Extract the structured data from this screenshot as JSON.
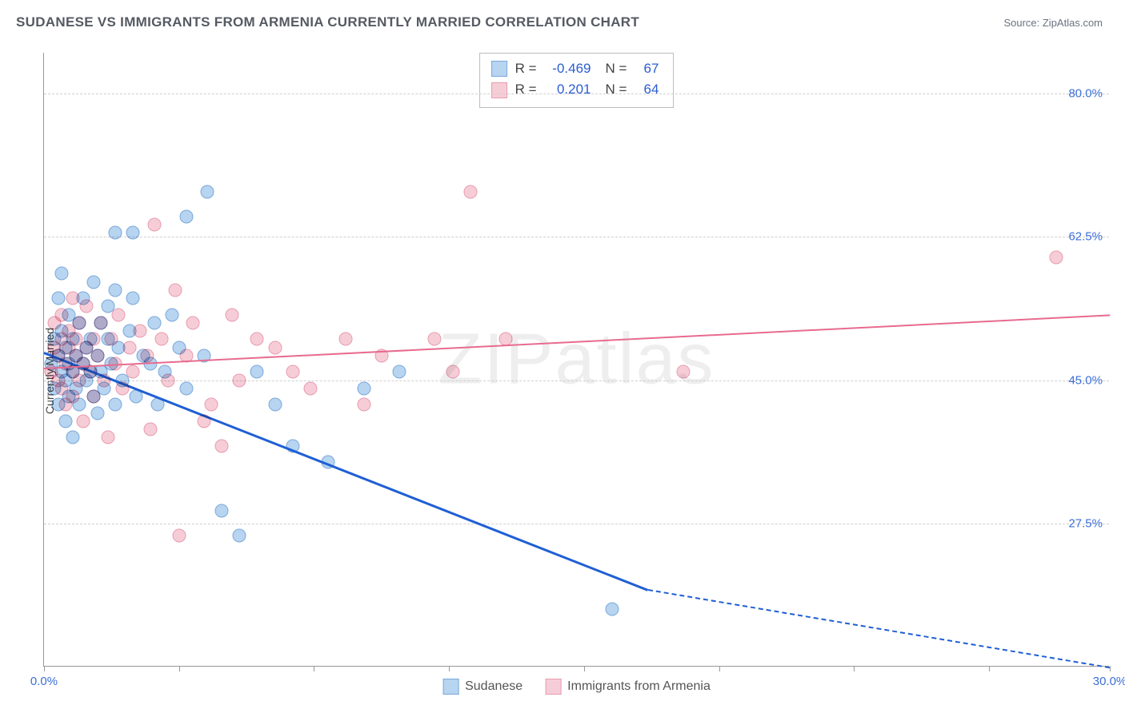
{
  "title": "SUDANESE VS IMMIGRANTS FROM ARMENIA CURRENTLY MARRIED CORRELATION CHART",
  "source": "Source: ZipAtlas.com",
  "watermark": "ZIPatlas",
  "ylabel": "Currently Married",
  "chart": {
    "type": "scatter",
    "xlim": [
      0,
      30
    ],
    "ylim": [
      10,
      85
    ],
    "xtick_positions": [
      0,
      3.8,
      7.6,
      11.4,
      15.2,
      19.0,
      22.8,
      26.6,
      30
    ],
    "xtick_labels_shown": {
      "0": "0.0%",
      "30": "30.0%"
    },
    "ytick_positions": [
      27.5,
      45.0,
      62.5,
      80.0
    ],
    "ytick_labels": [
      "27.5%",
      "45.0%",
      "62.5%",
      "80.0%"
    ],
    "background_color": "#ffffff",
    "grid_color": "#cfcfcf",
    "axis_color": "#999999",
    "tick_label_color": "#3b6fd6",
    "marker_radius": 8.5,
    "marker_border_width": 1.5,
    "series": [
      {
        "name": "Sudanese",
        "fill": "#b7d4f0",
        "stroke": "#7aa9db",
        "R": "-0.469",
        "N": "67",
        "trend": {
          "x1": 0.0,
          "y1": 48.5,
          "x2": 17.0,
          "y2": 19.5,
          "color": "#1f5fd4",
          "width": 2.5,
          "dash_x2": 30.0,
          "dash_y2": 10.0
        },
        "points": [
          [
            0.2,
            47
          ],
          [
            0.3,
            44
          ],
          [
            0.3,
            50
          ],
          [
            0.4,
            48
          ],
          [
            0.4,
            55
          ],
          [
            0.4,
            42
          ],
          [
            0.5,
            46
          ],
          [
            0.5,
            51
          ],
          [
            0.5,
            58
          ],
          [
            0.6,
            45
          ],
          [
            0.6,
            40
          ],
          [
            0.6,
            49
          ],
          [
            0.7,
            47
          ],
          [
            0.7,
            43
          ],
          [
            0.7,
            53
          ],
          [
            0.8,
            46
          ],
          [
            0.8,
            50
          ],
          [
            0.8,
            38
          ],
          [
            0.9,
            44
          ],
          [
            0.9,
            48
          ],
          [
            1.0,
            52
          ],
          [
            1.0,
            42
          ],
          [
            1.1,
            47
          ],
          [
            1.1,
            55
          ],
          [
            1.2,
            49
          ],
          [
            1.2,
            45
          ],
          [
            1.3,
            46
          ],
          [
            1.3,
            50
          ],
          [
            1.4,
            43
          ],
          [
            1.4,
            57
          ],
          [
            1.5,
            48
          ],
          [
            1.5,
            41
          ],
          [
            1.6,
            52
          ],
          [
            1.6,
            46
          ],
          [
            1.7,
            44
          ],
          [
            1.8,
            50
          ],
          [
            1.8,
            54
          ],
          [
            1.9,
            47
          ],
          [
            2.0,
            42
          ],
          [
            2.0,
            56
          ],
          [
            2.1,
            49
          ],
          [
            2.2,
            45
          ],
          [
            2.4,
            51
          ],
          [
            2.5,
            63
          ],
          [
            2.6,
            43
          ],
          [
            2.8,
            48
          ],
          [
            3.0,
            47
          ],
          [
            3.1,
            52
          ],
          [
            3.2,
            42
          ],
          [
            3.4,
            46
          ],
          [
            3.6,
            53
          ],
          [
            3.8,
            49
          ],
          [
            4.0,
            44
          ],
          [
            4.0,
            65
          ],
          [
            4.5,
            48
          ],
          [
            4.6,
            68
          ],
          [
            5.0,
            29
          ],
          [
            5.5,
            26
          ],
          [
            6.0,
            46
          ],
          [
            6.5,
            42
          ],
          [
            7.0,
            37
          ],
          [
            8.0,
            35
          ],
          [
            9.0,
            44
          ],
          [
            10.0,
            46
          ],
          [
            2.0,
            63
          ],
          [
            2.5,
            55
          ],
          [
            16.0,
            17
          ]
        ]
      },
      {
        "name": "Immigrants from Armenia",
        "fill": "#f6cdd7",
        "stroke": "#e89cb0",
        "R": "0.201",
        "N": "64",
        "trend": {
          "x1": 0.0,
          "y1": 46.5,
          "x2": 30.0,
          "y2": 53.0,
          "color": "#e76b8f",
          "width": 2.2
        },
        "points": [
          [
            0.2,
            46
          ],
          [
            0.3,
            49
          ],
          [
            0.3,
            52
          ],
          [
            0.4,
            45
          ],
          [
            0.4,
            48
          ],
          [
            0.5,
            50
          ],
          [
            0.5,
            44
          ],
          [
            0.5,
            53
          ],
          [
            0.6,
            47
          ],
          [
            0.6,
            42
          ],
          [
            0.7,
            49
          ],
          [
            0.7,
            51
          ],
          [
            0.8,
            46
          ],
          [
            0.8,
            43
          ],
          [
            0.8,
            55
          ],
          [
            0.9,
            48
          ],
          [
            0.9,
            50
          ],
          [
            1.0,
            45
          ],
          [
            1.0,
            52
          ],
          [
            1.1,
            47
          ],
          [
            1.1,
            40
          ],
          [
            1.2,
            49
          ],
          [
            1.2,
            54
          ],
          [
            1.3,
            46
          ],
          [
            1.4,
            50
          ],
          [
            1.4,
            43
          ],
          [
            1.5,
            48
          ],
          [
            1.6,
            52
          ],
          [
            1.7,
            45
          ],
          [
            1.8,
            38
          ],
          [
            1.9,
            50
          ],
          [
            2.0,
            47
          ],
          [
            2.1,
            53
          ],
          [
            2.2,
            44
          ],
          [
            2.4,
            49
          ],
          [
            2.5,
            46
          ],
          [
            2.7,
            51
          ],
          [
            2.9,
            48
          ],
          [
            3.0,
            39
          ],
          [
            3.1,
            64
          ],
          [
            3.3,
            50
          ],
          [
            3.5,
            45
          ],
          [
            3.7,
            56
          ],
          [
            4.0,
            48
          ],
          [
            4.2,
            52
          ],
          [
            4.5,
            40
          ],
          [
            4.7,
            42
          ],
          [
            5.0,
            37
          ],
          [
            5.3,
            53
          ],
          [
            5.5,
            45
          ],
          [
            6.0,
            50
          ],
          [
            6.5,
            49
          ],
          [
            7.0,
            46
          ],
          [
            7.5,
            44
          ],
          [
            8.5,
            50
          ],
          [
            9.0,
            42
          ],
          [
            9.5,
            48
          ],
          [
            11.0,
            50
          ],
          [
            11.5,
            46
          ],
          [
            12.0,
            68
          ],
          [
            13.0,
            50
          ],
          [
            18.0,
            46
          ],
          [
            28.5,
            60
          ],
          [
            3.8,
            26
          ]
        ]
      }
    ]
  },
  "stats_box": {
    "rows": [
      {
        "swatch_fill": "#b7d4f0",
        "swatch_stroke": "#7aa9db",
        "r_label": "R =",
        "r_val": "-0.469",
        "n_label": "N =",
        "n_val": "67"
      },
      {
        "swatch_fill": "#f6cdd7",
        "swatch_stroke": "#e89cb0",
        "r_label": "R =",
        "r_val": "0.201",
        "n_label": "N =",
        "n_val": "64"
      }
    ]
  },
  "legend": {
    "items": [
      {
        "swatch_fill": "#b7d4f0",
        "swatch_stroke": "#7aa9db",
        "label": "Sudanese"
      },
      {
        "swatch_fill": "#f6cdd7",
        "swatch_stroke": "#e89cb0",
        "label": "Immigrants from Armenia"
      }
    ]
  }
}
